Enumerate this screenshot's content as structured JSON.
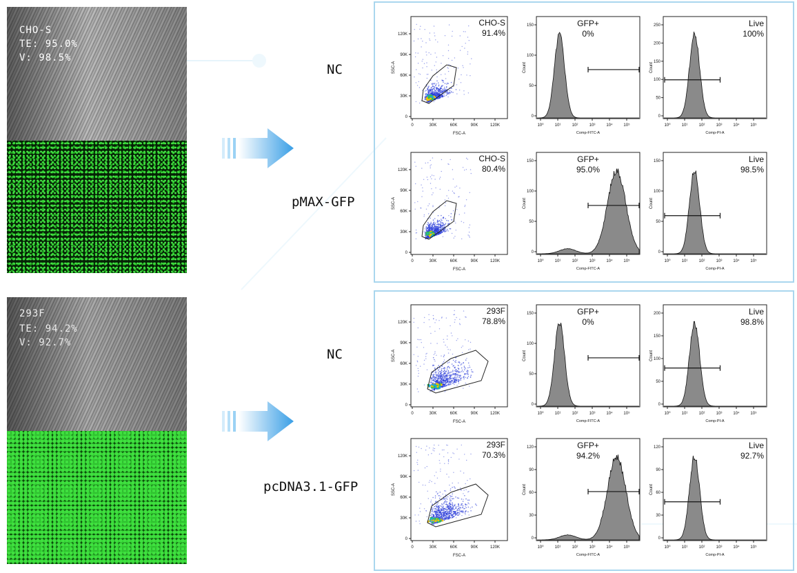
{
  "rows": [
    {
      "cells": {
        "name": "CHO-S",
        "te": "TE: 95.0%",
        "v": "V: 98.5%"
      },
      "conditions": [
        {
          "label": "NC",
          "scatter": {
            "gate_name": "CHO-S",
            "gate_pct": "91.4%"
          },
          "gfp": {
            "name": "GFP+",
            "pct": "0%",
            "yticks": [
              "0",
              "50",
              "100",
              "150"
            ],
            "xlabel": "Comp-FITC-A"
          },
          "live": {
            "name": "Live",
            "pct": "100%",
            "yticks": [
              "0",
              "50",
              "100",
              "150",
              "200",
              "250"
            ],
            "xlabel": "Comp-PI-A"
          }
        },
        {
          "label": "pMAX-GFP",
          "scatter": {
            "gate_name": "CHO-S",
            "gate_pct": "80.4%"
          },
          "gfp": {
            "name": "GFP+",
            "pct": "95.0%",
            "yticks": [
              "0",
              "50",
              "100",
              "150"
            ],
            "xlabel": "Comp-FITC-A"
          },
          "live": {
            "name": "Live",
            "pct": "98.5%",
            "yticks": [
              "0",
              "50",
              "100",
              "150"
            ],
            "xlabel": "Comp-PI-A"
          }
        }
      ]
    },
    {
      "cells": {
        "name": "293F",
        "te": "TE: 94.2%",
        "v": "V: 92.7%"
      },
      "conditions": [
        {
          "label": "NC",
          "scatter": {
            "gate_name": "293F",
            "gate_pct": "78.8%"
          },
          "gfp": {
            "name": "GFP+",
            "pct": "0%",
            "yticks": [
              "0",
              "50",
              "100",
              "150"
            ],
            "xlabel": "Comp-FITC-A"
          },
          "live": {
            "name": "Live",
            "pct": "98.8%",
            "yticks": [
              "0",
              "50",
              "100",
              "150",
              "200"
            ],
            "xlabel": "Comp-PI-A"
          }
        },
        {
          "label": "pcDNA3.1-GFP",
          "scatter": {
            "gate_name": "293F",
            "gate_pct": "70.3%"
          },
          "gfp": {
            "name": "GFP+",
            "pct": "94.2%",
            "yticks": [
              "0",
              "30",
              "60",
              "90",
              "120"
            ],
            "xlabel": "Comp-FITC-A"
          },
          "live": {
            "name": "Live",
            "pct": "92.7%",
            "yticks": [
              "0",
              "30",
              "60",
              "90",
              "120"
            ],
            "xlabel": "Comp-PI-A"
          }
        }
      ]
    }
  ],
  "scatter_axes": {
    "xlabel": "FSC-A",
    "ylabel": "SSC-A",
    "xticks": [
      "0",
      "30K",
      "60K",
      "90K",
      "120K"
    ],
    "yticks": [
      "0",
      "30K",
      "60K",
      "90K",
      "120K"
    ]
  },
  "hist_axes": {
    "ylabel": "Count",
    "xticks": [
      "10⁰",
      "10¹",
      "10²",
      "10³",
      "10⁴",
      "10⁵"
    ]
  },
  "colors": {
    "arrow": "#3a9fe6",
    "frame": "#a9d6ee",
    "fluorescence": "#3cd83c",
    "hist_fill": "#8a8a8a"
  }
}
